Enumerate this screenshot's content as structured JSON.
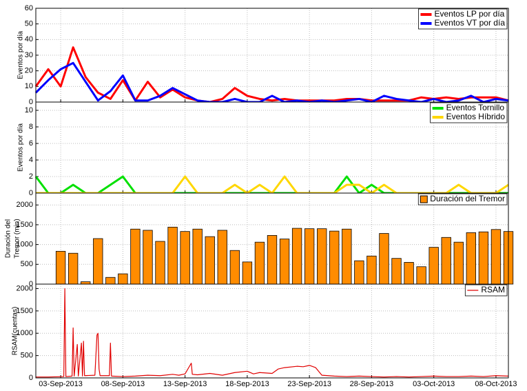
{
  "chart_data": [
    {
      "type": "line",
      "ylabel": "Eventos por día",
      "ylim": [
        0,
        60
      ],
      "yticks": [
        0,
        10,
        20,
        30,
        40,
        50,
        60
      ],
      "grid": true,
      "legend": "upper-right",
      "x": [
        "2013-09-01",
        "2013-09-02",
        "2013-09-03",
        "2013-09-04",
        "2013-09-05",
        "2013-09-06",
        "2013-09-07",
        "2013-09-08",
        "2013-09-09",
        "2013-09-10",
        "2013-09-11",
        "2013-09-12",
        "2013-09-13",
        "2013-09-14",
        "2013-09-15",
        "2013-09-16",
        "2013-09-17",
        "2013-09-18",
        "2013-09-19",
        "2013-09-20",
        "2013-09-21",
        "2013-09-22",
        "2013-09-23",
        "2013-09-24",
        "2013-09-25",
        "2013-09-26",
        "2013-09-27",
        "2013-09-28",
        "2013-09-29",
        "2013-09-30",
        "2013-10-01",
        "2013-10-02",
        "2013-10-03",
        "2013-10-04",
        "2013-10-05",
        "2013-10-06",
        "2013-10-07",
        "2013-10-08",
        "2013-10-09"
      ],
      "series": [
        {
          "name": "Eventos LP por día",
          "color": "#ff0000",
          "values": [
            10,
            21,
            10,
            35,
            16,
            6,
            2,
            14,
            1,
            13,
            3,
            8,
            3,
            1,
            0,
            2,
            9,
            4,
            2,
            1,
            2,
            1,
            1,
            1,
            1,
            2,
            2,
            1,
            1,
            1,
            1,
            3,
            2,
            3,
            2,
            3,
            3,
            3,
            1
          ]
        },
        {
          "name": "Eventos VT por día",
          "color": "#0000ff",
          "values": [
            6,
            14,
            21,
            25,
            13,
            1,
            7,
            17,
            1,
            1,
            4,
            9,
            5,
            1,
            0,
            0,
            2,
            0,
            0,
            4,
            0,
            1,
            0,
            1,
            0,
            1,
            2,
            0,
            4,
            2,
            1,
            0,
            2,
            0,
            1,
            4,
            0,
            2,
            1
          ]
        }
      ]
    },
    {
      "type": "line",
      "ylabel": "Eventos por día",
      "ylim": [
        0,
        11
      ],
      "yticks": [
        0,
        2,
        4,
        6,
        8,
        10
      ],
      "grid": true,
      "legend": "upper-right",
      "x": [
        "2013-09-01",
        "2013-09-02",
        "2013-09-03",
        "2013-09-04",
        "2013-09-05",
        "2013-09-06",
        "2013-09-07",
        "2013-09-08",
        "2013-09-09",
        "2013-09-10",
        "2013-09-11",
        "2013-09-12",
        "2013-09-13",
        "2013-09-14",
        "2013-09-15",
        "2013-09-16",
        "2013-09-17",
        "2013-09-18",
        "2013-09-19",
        "2013-09-20",
        "2013-09-21",
        "2013-09-22",
        "2013-09-23",
        "2013-09-24",
        "2013-09-25",
        "2013-09-26",
        "2013-09-27",
        "2013-09-28",
        "2013-09-29",
        "2013-09-30",
        "2013-10-01",
        "2013-10-02",
        "2013-10-03",
        "2013-10-04",
        "2013-10-05",
        "2013-10-06",
        "2013-10-07",
        "2013-10-08",
        "2013-10-09"
      ],
      "series": [
        {
          "name": "Eventos Tornillo",
          "color": "#00e000",
          "values": [
            2,
            0,
            0,
            1,
            0,
            0,
            1,
            2,
            0,
            0,
            0,
            0,
            0,
            0,
            0,
            0,
            0,
            0,
            0,
            0,
            0,
            0,
            0,
            0,
            0,
            2,
            0,
            1,
            0,
            0,
            0,
            0,
            0,
            0,
            0,
            0,
            0,
            0,
            0
          ]
        },
        {
          "name": "Eventos Híbrido",
          "color": "#ffd700",
          "values": [
            0,
            0,
            0,
            0,
            0,
            0,
            0,
            0,
            0,
            0,
            0,
            0,
            2,
            0,
            0,
            0,
            1,
            0,
            1,
            0,
            2,
            0,
            0,
            0,
            0,
            1,
            1,
            0,
            1,
            0,
            0,
            0,
            0,
            0,
            1,
            0,
            0,
            0,
            1
          ]
        }
      ]
    },
    {
      "type": "bar",
      "ylabel": [
        "Duración del",
        "Tremor (min)"
      ],
      "ylim": [
        0,
        2300
      ],
      "yticks": [
        0,
        500,
        1000,
        1500,
        2000
      ],
      "grid": true,
      "legend": "upper-right",
      "x": [
        "2013-09-03",
        "2013-09-04",
        "2013-09-05",
        "2013-09-06",
        "2013-09-07",
        "2013-09-08",
        "2013-09-09",
        "2013-09-10",
        "2013-09-11",
        "2013-09-12",
        "2013-09-13",
        "2013-09-14",
        "2013-09-15",
        "2013-09-16",
        "2013-09-17",
        "2013-09-18",
        "2013-09-19",
        "2013-09-20",
        "2013-09-21",
        "2013-09-22",
        "2013-09-23",
        "2013-09-24",
        "2013-09-25",
        "2013-09-26",
        "2013-09-27",
        "2013-09-28",
        "2013-09-29",
        "2013-09-30",
        "2013-10-01",
        "2013-10-02",
        "2013-10-03",
        "2013-10-04",
        "2013-10-05",
        "2013-10-06",
        "2013-10-07",
        "2013-10-08",
        "2013-10-09"
      ],
      "series": [
        {
          "name": "Duración del Tremor",
          "color": "#ff8c00",
          "values": [
            830,
            780,
            60,
            1150,
            170,
            260,
            1390,
            1360,
            1080,
            1440,
            1330,
            1390,
            1200,
            1360,
            850,
            560,
            1060,
            1230,
            1140,
            1410,
            1400,
            1400,
            1340,
            1390,
            590,
            710,
            1280,
            650,
            550,
            440,
            930,
            1180,
            1060,
            1300,
            1320,
            1380,
            1330
          ]
        }
      ]
    },
    {
      "type": "line",
      "ylabel": "RSAM(cuentas)",
      "ylim": [
        0,
        2100
      ],
      "yticks": [
        0,
        500,
        1000,
        1500,
        2000
      ],
      "grid": true,
      "legend": "upper-right",
      "xlim": [
        "2013-09-01",
        "2013-10-09"
      ],
      "xticks": [
        {
          "value": "2013-09-03",
          "label": "03-Sep-2013"
        },
        {
          "value": "2013-09-08",
          "label": "08-Sep-2013"
        },
        {
          "value": "2013-09-13",
          "label": "13-Sep-2013"
        },
        {
          "value": "2013-09-18",
          "label": "18-Sep-2013"
        },
        {
          "value": "2013-09-23",
          "label": "23-Sep-2013"
        },
        {
          "value": "2013-09-28",
          "label": "28-Sep-2013"
        },
        {
          "value": "2013-10-03",
          "label": "03-Oct-2013"
        },
        {
          "value": "2013-10-08",
          "label": "08-Oct-2013"
        }
      ],
      "x": [
        "2013-09-01T00:00",
        "2013-09-02T00:00",
        "2013-09-03T06:00",
        "2013-09-03T08:00",
        "2013-09-03T10:00",
        "2013-09-03T22:00",
        "2013-09-04T00:00",
        "2013-09-04T02:00",
        "2013-09-04T08:00",
        "2013-09-04T10:00",
        "2013-09-04T16:00",
        "2013-09-04T18:00",
        "2013-09-04T20:00",
        "2013-09-04T22:00",
        "2013-09-05T18:00",
        "2013-09-05T22:00",
        "2013-09-06T00:00",
        "2013-09-06T02:00",
        "2013-09-06T04:00",
        "2013-09-06T22:00",
        "2013-09-07T00:00",
        "2013-09-07T02:00",
        "2013-09-08T00:00",
        "2013-09-09T00:00",
        "2013-09-10T00:00",
        "2013-09-11T00:00",
        "2013-09-12T00:00",
        "2013-09-12T12:00",
        "2013-09-13T00:00",
        "2013-09-13T12:00",
        "2013-09-13T14:00",
        "2013-09-14T00:00",
        "2013-09-15T00:00",
        "2013-09-16T00:00",
        "2013-09-17T00:00",
        "2013-09-18T00:00",
        "2013-09-18T12:00",
        "2013-09-19T00:00",
        "2013-09-20T00:00",
        "2013-09-20T12:00",
        "2013-09-21T00:00",
        "2013-09-22T00:00",
        "2013-09-22T12:00",
        "2013-09-23T00:00",
        "2013-09-23T12:00",
        "2013-09-24T00:00",
        "2013-09-25T00:00",
        "2013-09-26T00:00",
        "2013-09-27T00:00",
        "2013-09-28T00:00",
        "2013-09-29T00:00",
        "2013-09-30T00:00",
        "2013-10-01T00:00",
        "2013-10-02T00:00",
        "2013-10-03T00:00",
        "2013-10-04T00:00",
        "2013-10-05T00:00",
        "2013-10-06T00:00",
        "2013-10-07T00:00",
        "2013-10-08T00:00",
        "2013-10-09T00:00"
      ],
      "series": [
        {
          "name": "RSAM",
          "color": "#e00000",
          "values": [
            20,
            20,
            30,
            2000,
            30,
            40,
            1120,
            40,
            750,
            40,
            780,
            40,
            820,
            50,
            60,
            960,
            1000,
            200,
            50,
            50,
            780,
            40,
            30,
            40,
            60,
            50,
            80,
            60,
            90,
            330,
            80,
            70,
            100,
            60,
            120,
            150,
            90,
            120,
            100,
            200,
            230,
            260,
            250,
            280,
            230,
            60,
            40,
            30,
            40,
            30,
            20,
            30,
            20,
            30,
            40,
            30,
            30,
            40,
            30,
            50,
            40
          ]
        }
      ]
    }
  ]
}
